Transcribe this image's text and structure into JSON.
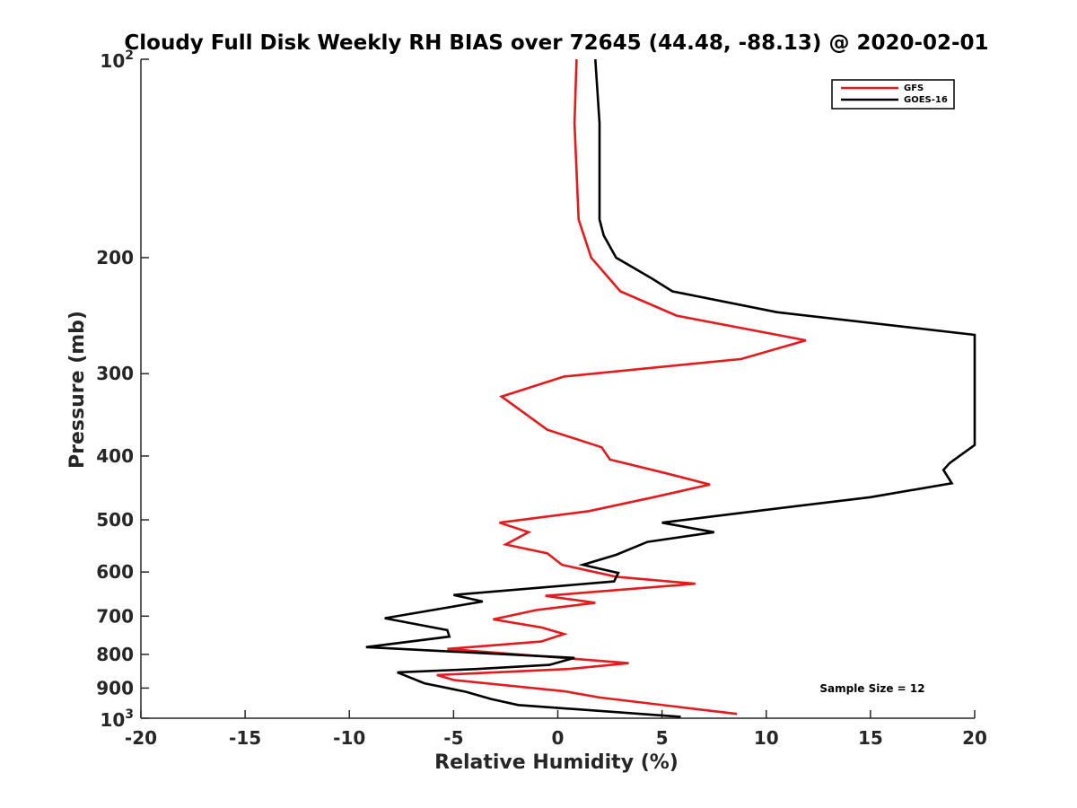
{
  "chart_data": {
    "type": "line",
    "title": "Cloudy Full Disk Weekly RH BIAS over 72645 (44.48, -88.13) @ 2020-02-01",
    "xlabel": "Relative Humidity (%)",
    "ylabel": "Pressure (mb)",
    "xlim": [
      -20,
      20
    ],
    "ylim": [
      100,
      1000
    ],
    "yscale": "log",
    "y_reversed": true,
    "grid": false,
    "legend_position": "top-right",
    "xticks": [
      -20,
      -15,
      -10,
      -5,
      0,
      5,
      10,
      15,
      20
    ],
    "xtick_labels": [
      "-20",
      "-15",
      "-10",
      "-5",
      "0",
      "5",
      "10",
      "15",
      "20"
    ],
    "yticks": [
      200,
      300,
      400,
      500,
      600,
      700,
      800,
      900
    ],
    "ytick_labels": [
      "200",
      "300",
      "400",
      "500",
      "600",
      "700",
      "800",
      "900"
    ],
    "ytick_power_labels": [
      {
        "value": 100,
        "base": "10",
        "exp": "2"
      },
      {
        "value": 1000,
        "base": "10",
        "exp": "3"
      }
    ],
    "annotation": "Sample Size = 12",
    "series": [
      {
        "name": "GFS",
        "color": "#e41a1c",
        "points": [
          [
            0.9,
            100
          ],
          [
            0.8,
            125
          ],
          [
            1.0,
            175
          ],
          [
            1.6,
            200
          ],
          [
            3.0,
            225
          ],
          [
            5.7,
            245
          ],
          [
            11.9,
            267
          ],
          [
            8.8,
            285
          ],
          [
            0.3,
            303
          ],
          [
            -2.7,
            325
          ],
          [
            -0.5,
            365
          ],
          [
            2.1,
            388
          ],
          [
            2.5,
            405
          ],
          [
            5.2,
            425
          ],
          [
            7.3,
            442
          ],
          [
            4.6,
            462
          ],
          [
            1.5,
            485
          ],
          [
            -2.8,
            505
          ],
          [
            -1.4,
            522
          ],
          [
            -2.5,
            545
          ],
          [
            -0.5,
            562
          ],
          [
            0.2,
            585
          ],
          [
            2.8,
            610
          ],
          [
            6.6,
            625
          ],
          [
            -0.6,
            652
          ],
          [
            1.8,
            668
          ],
          [
            -1.0,
            685
          ],
          [
            -3.1,
            708
          ],
          [
            -0.8,
            728
          ],
          [
            0.3,
            745
          ],
          [
            -0.8,
            765
          ],
          [
            -5.3,
            785
          ],
          [
            -0.2,
            808
          ],
          [
            3.4,
            825
          ],
          [
            0.5,
            842
          ],
          [
            -5.8,
            860
          ],
          [
            -5.0,
            875
          ],
          [
            0.3,
            910
          ],
          [
            2.0,
            930
          ],
          [
            8.6,
            985
          ]
        ]
      },
      {
        "name": "GOES-16",
        "color": "#000000",
        "points": [
          [
            1.8,
            100
          ],
          [
            2.0,
            125
          ],
          [
            2.0,
            175
          ],
          [
            2.2,
            185
          ],
          [
            2.8,
            200
          ],
          [
            4.5,
            215
          ],
          [
            5.5,
            225
          ],
          [
            10.5,
            242
          ],
          [
            20.0,
            262
          ],
          [
            20.0,
            385
          ],
          [
            18.8,
            410
          ],
          [
            18.5,
            420
          ],
          [
            18.9,
            440
          ],
          [
            15.0,
            462
          ],
          [
            9.5,
            485
          ],
          [
            5.0,
            505
          ],
          [
            7.5,
            522
          ],
          [
            4.3,
            540
          ],
          [
            2.8,
            565
          ],
          [
            1.2,
            585
          ],
          [
            2.9,
            602
          ],
          [
            2.7,
            620
          ],
          [
            -5.0,
            650
          ],
          [
            -3.6,
            665
          ],
          [
            -8.3,
            705
          ],
          [
            -5.3,
            735
          ],
          [
            -5.2,
            752
          ],
          [
            -9.2,
            780
          ],
          [
            0.8,
            810
          ],
          [
            -0.4,
            830
          ],
          [
            -3.9,
            842
          ],
          [
            -7.7,
            852
          ],
          [
            -6.4,
            885
          ],
          [
            -4.4,
            912
          ],
          [
            -3.2,
            935
          ],
          [
            -1.9,
            955
          ],
          [
            5.9,
            995
          ]
        ]
      }
    ]
  }
}
